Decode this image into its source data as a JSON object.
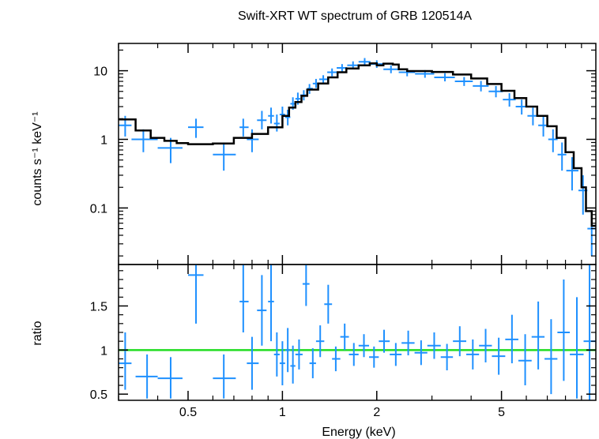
{
  "chart_data": [
    {
      "type": "scatter",
      "panel": "spectrum",
      "title": "Swift-XRT WT spectrum of GRB 120514A",
      "xlabel": "Energy (keV)",
      "ylabel": "counts s⁻¹ keV⁻¹",
      "xscale": "log",
      "yscale": "log",
      "xlim": [
        0.3,
        10
      ],
      "ylim": [
        0.015,
        25
      ],
      "yticks": [
        {
          "value": 0.1,
          "label": "0.1"
        },
        {
          "value": 1,
          "label": "1"
        },
        {
          "value": 10,
          "label": "10"
        }
      ],
      "colors": {
        "data": "#1e90ff",
        "model": "#000000"
      },
      "series": [
        {
          "name": "data",
          "points": [
            {
              "x": 0.315,
              "xlo": 0.3,
              "xhi": 0.33,
              "y": 1.6,
              "ylo": 1.1,
              "yhi": 2.2
            },
            {
              "x": 0.36,
              "xlo": 0.33,
              "xhi": 0.4,
              "y": 1.0,
              "ylo": 0.65,
              "yhi": 1.4
            },
            {
              "x": 0.44,
              "xlo": 0.4,
              "xhi": 0.48,
              "y": 0.75,
              "ylo": 0.45,
              "yhi": 1.05
            },
            {
              "x": 0.53,
              "xlo": 0.5,
              "xhi": 0.56,
              "y": 1.5,
              "ylo": 1.05,
              "yhi": 2.0
            },
            {
              "x": 0.65,
              "xlo": 0.6,
              "xhi": 0.71,
              "y": 0.6,
              "ylo": 0.35,
              "yhi": 0.9
            },
            {
              "x": 0.75,
              "xlo": 0.73,
              "xhi": 0.78,
              "y": 1.5,
              "ylo": 1.1,
              "yhi": 2.0
            },
            {
              "x": 0.8,
              "xlo": 0.77,
              "xhi": 0.84,
              "y": 1.0,
              "ylo": 0.65,
              "yhi": 1.4
            },
            {
              "x": 0.86,
              "xlo": 0.83,
              "xhi": 0.89,
              "y": 1.9,
              "ylo": 1.4,
              "yhi": 2.6
            },
            {
              "x": 0.92,
              "xlo": 0.9,
              "xhi": 0.94,
              "y": 2.2,
              "ylo": 1.7,
              "yhi": 2.9
            },
            {
              "x": 0.96,
              "xlo": 0.94,
              "xhi": 0.98,
              "y": 1.7,
              "ylo": 1.3,
              "yhi": 2.3
            },
            {
              "x": 1.0,
              "xlo": 0.98,
              "xhi": 1.02,
              "y": 2.3,
              "ylo": 1.8,
              "yhi": 3.0
            },
            {
              "x": 1.04,
              "xlo": 1.02,
              "xhi": 1.06,
              "y": 2.1,
              "ylo": 1.6,
              "yhi": 2.7
            },
            {
              "x": 1.08,
              "xlo": 1.06,
              "xhi": 1.1,
              "y": 3.3,
              "ylo": 2.7,
              "yhi": 4.1
            },
            {
              "x": 1.12,
              "xlo": 1.1,
              "xhi": 1.14,
              "y": 3.9,
              "ylo": 3.2,
              "yhi": 4.8
            },
            {
              "x": 1.17,
              "xlo": 1.14,
              "xhi": 1.2,
              "y": 4.4,
              "ylo": 3.7,
              "yhi": 5.2
            },
            {
              "x": 1.22,
              "xlo": 1.2,
              "xhi": 1.25,
              "y": 5.5,
              "ylo": 4.6,
              "yhi": 6.4
            },
            {
              "x": 1.28,
              "xlo": 1.25,
              "xhi": 1.31,
              "y": 6.5,
              "ylo": 5.6,
              "yhi": 7.6
            },
            {
              "x": 1.35,
              "xlo": 1.31,
              "xhi": 1.39,
              "y": 7.5,
              "ylo": 6.5,
              "yhi": 8.6
            },
            {
              "x": 1.44,
              "xlo": 1.39,
              "xhi": 1.49,
              "y": 9.5,
              "ylo": 8.3,
              "yhi": 10.8
            },
            {
              "x": 1.55,
              "xlo": 1.49,
              "xhi": 1.61,
              "y": 11.0,
              "ylo": 9.6,
              "yhi": 12.5
            },
            {
              "x": 1.68,
              "xlo": 1.61,
              "xhi": 1.75,
              "y": 12.0,
              "ylo": 10.5,
              "yhi": 13.7
            },
            {
              "x": 1.83,
              "xlo": 1.75,
              "xhi": 1.91,
              "y": 13.5,
              "ylo": 11.8,
              "yhi": 15.3
            },
            {
              "x": 2.0,
              "xlo": 1.91,
              "xhi": 2.1,
              "y": 12.5,
              "ylo": 11.0,
              "yhi": 14.2
            },
            {
              "x": 2.22,
              "xlo": 2.1,
              "xhi": 2.35,
              "y": 10.5,
              "ylo": 9.2,
              "yhi": 12.0
            },
            {
              "x": 2.5,
              "xlo": 2.35,
              "xhi": 2.65,
              "y": 9.5,
              "ylo": 8.3,
              "yhi": 10.8
            },
            {
              "x": 2.85,
              "xlo": 2.65,
              "xhi": 3.05,
              "y": 9.0,
              "ylo": 7.9,
              "yhi": 10.2
            },
            {
              "x": 3.3,
              "xlo": 3.05,
              "xhi": 3.55,
              "y": 8.0,
              "ylo": 7.0,
              "yhi": 9.2
            },
            {
              "x": 3.8,
              "xlo": 3.55,
              "xhi": 4.05,
              "y": 7.0,
              "ylo": 6.0,
              "yhi": 8.1
            },
            {
              "x": 4.3,
              "xlo": 4.05,
              "xhi": 4.55,
              "y": 6.0,
              "ylo": 5.0,
              "yhi": 7.1
            },
            {
              "x": 4.8,
              "xlo": 4.55,
              "xhi": 5.05,
              "y": 5.0,
              "ylo": 4.1,
              "yhi": 6.0
            },
            {
              "x": 5.3,
              "xlo": 5.05,
              "xhi": 5.55,
              "y": 3.8,
              "ylo": 3.0,
              "yhi": 4.7
            },
            {
              "x": 5.8,
              "xlo": 5.55,
              "xhi": 6.05,
              "y": 3.0,
              "ylo": 2.3,
              "yhi": 3.8
            },
            {
              "x": 6.3,
              "xlo": 6.05,
              "xhi": 6.55,
              "y": 2.2,
              "ylo": 1.6,
              "yhi": 2.9
            },
            {
              "x": 6.8,
              "xlo": 6.55,
              "xhi": 7.05,
              "y": 1.6,
              "ylo": 1.1,
              "yhi": 2.2
            },
            {
              "x": 7.3,
              "xlo": 7.05,
              "xhi": 7.55,
              "y": 1.0,
              "ylo": 0.65,
              "yhi": 1.4
            },
            {
              "x": 7.8,
              "xlo": 7.55,
              "xhi": 8.05,
              "y": 0.6,
              "ylo": 0.35,
              "yhi": 0.9
            },
            {
              "x": 8.4,
              "xlo": 8.05,
              "xhi": 8.8,
              "y": 0.35,
              "ylo": 0.18,
              "yhi": 0.55
            },
            {
              "x": 9.1,
              "xlo": 8.8,
              "xhi": 9.4,
              "y": 0.18,
              "ylo": 0.08,
              "yhi": 0.3
            },
            {
              "x": 9.7,
              "xlo": 9.4,
              "xhi": 10.0,
              "y": 0.05,
              "ylo": 0.02,
              "yhi": 0.09
            }
          ]
        },
        {
          "name": "model",
          "step": [
            {
              "x": 0.3,
              "y": 1.95
            },
            {
              "x": 0.34,
              "y": 1.35
            },
            {
              "x": 0.38,
              "y": 1.05
            },
            {
              "x": 0.42,
              "y": 0.95
            },
            {
              "x": 0.46,
              "y": 0.88
            },
            {
              "x": 0.5,
              "y": 0.85
            },
            {
              "x": 0.6,
              "y": 0.87
            },
            {
              "x": 0.7,
              "y": 1.05
            },
            {
              "x": 0.8,
              "y": 1.2
            },
            {
              "x": 0.9,
              "y": 1.5
            },
            {
              "x": 1.0,
              "y": 2.2
            },
            {
              "x": 1.05,
              "y": 2.9
            },
            {
              "x": 1.1,
              "y": 3.5
            },
            {
              "x": 1.15,
              "y": 4.3
            },
            {
              "x": 1.2,
              "y": 5.3
            },
            {
              "x": 1.3,
              "y": 6.5
            },
            {
              "x": 1.4,
              "y": 8.0
            },
            {
              "x": 1.5,
              "y": 9.5
            },
            {
              "x": 1.6,
              "y": 10.8
            },
            {
              "x": 1.75,
              "y": 12.0
            },
            {
              "x": 1.9,
              "y": 12.8
            },
            {
              "x": 2.0,
              "y": 12.0
            },
            {
              "x": 2.1,
              "y": 12.7
            },
            {
              "x": 2.25,
              "y": 12.3
            },
            {
              "x": 2.35,
              "y": 10.5
            },
            {
              "x": 2.5,
              "y": 9.9
            },
            {
              "x": 3.0,
              "y": 9.6
            },
            {
              "x": 3.5,
              "y": 8.8
            },
            {
              "x": 4.0,
              "y": 7.7
            },
            {
              "x": 4.5,
              "y": 6.4
            },
            {
              "x": 5.0,
              "y": 5.1
            },
            {
              "x": 5.5,
              "y": 4.0
            },
            {
              "x": 6.0,
              "y": 3.0
            },
            {
              "x": 6.5,
              "y": 2.2
            },
            {
              "x": 7.0,
              "y": 1.55
            },
            {
              "x": 7.5,
              "y": 1.05
            },
            {
              "x": 8.0,
              "y": 0.65
            },
            {
              "x": 8.5,
              "y": 0.38
            },
            {
              "x": 9.0,
              "y": 0.2
            },
            {
              "x": 9.3,
              "y": 0.09
            },
            {
              "x": 9.7,
              "y": 0.055
            },
            {
              "x": 10.0,
              "y": 0.055
            }
          ]
        }
      ]
    },
    {
      "type": "scatter",
      "panel": "ratio",
      "xlabel": "Energy (keV)",
      "ylabel": "ratio",
      "xscale": "log",
      "xlim": [
        0.3,
        10
      ],
      "ylim": [
        0.43,
        1.97
      ],
      "xticks": [
        {
          "value": 0.5,
          "label": "0.5"
        },
        {
          "value": 1,
          "label": "1"
        },
        {
          "value": 2,
          "label": "2"
        },
        {
          "value": 5,
          "label": "5"
        }
      ],
      "yticks": [
        {
          "value": 0.5,
          "label": "0.5"
        },
        {
          "value": 1,
          "label": "1"
        },
        {
          "value": 1.5,
          "label": "1.5"
        }
      ],
      "reference_line": 1.0,
      "colors": {
        "data": "#1e90ff",
        "reference": "#22dd22"
      },
      "series": [
        {
          "name": "ratio",
          "points": [
            {
              "x": 0.315,
              "xlo": 0.3,
              "xhi": 0.33,
              "y": 0.85,
              "ylo": 0.55,
              "yhi": 1.2
            },
            {
              "x": 0.37,
              "xlo": 0.34,
              "xhi": 0.4,
              "y": 0.7,
              "ylo": 0.45,
              "yhi": 0.95
            },
            {
              "x": 0.44,
              "xlo": 0.4,
              "xhi": 0.48,
              "y": 0.68,
              "ylo": 0.45,
              "yhi": 0.92
            },
            {
              "x": 0.53,
              "xlo": 0.5,
              "xhi": 0.56,
              "y": 1.85,
              "ylo": 1.3,
              "yhi": 1.97
            },
            {
              "x": 0.65,
              "xlo": 0.6,
              "xhi": 0.71,
              "y": 0.68,
              "ylo": 0.45,
              "yhi": 0.95
            },
            {
              "x": 0.75,
              "xlo": 0.73,
              "xhi": 0.78,
              "y": 1.55,
              "ylo": 1.2,
              "yhi": 1.97
            },
            {
              "x": 0.8,
              "xlo": 0.77,
              "xhi": 0.84,
              "y": 0.85,
              "ylo": 0.55,
              "yhi": 1.15
            },
            {
              "x": 0.86,
              "xlo": 0.83,
              "xhi": 0.89,
              "y": 1.45,
              "ylo": 1.05,
              "yhi": 1.85
            },
            {
              "x": 0.92,
              "xlo": 0.9,
              "xhi": 0.94,
              "y": 1.55,
              "ylo": 1.1,
              "yhi": 1.97
            },
            {
              "x": 0.96,
              "xlo": 0.94,
              "xhi": 0.98,
              "y": 0.95,
              "ylo": 0.7,
              "yhi": 1.2
            },
            {
              "x": 1.0,
              "xlo": 0.98,
              "xhi": 1.02,
              "y": 0.85,
              "ylo": 0.6,
              "yhi": 1.1
            },
            {
              "x": 1.04,
              "xlo": 1.02,
              "xhi": 1.06,
              "y": 1.0,
              "ylo": 0.75,
              "yhi": 1.25
            },
            {
              "x": 1.08,
              "xlo": 1.06,
              "xhi": 1.1,
              "y": 0.82,
              "ylo": 0.62,
              "yhi": 1.05
            },
            {
              "x": 1.13,
              "xlo": 1.1,
              "xhi": 1.16,
              "y": 0.95,
              "ylo": 0.78,
              "yhi": 1.12
            },
            {
              "x": 1.19,
              "xlo": 1.16,
              "xhi": 1.22,
              "y": 1.75,
              "ylo": 1.5,
              "yhi": 1.97
            },
            {
              "x": 1.25,
              "xlo": 1.22,
              "xhi": 1.28,
              "y": 0.85,
              "ylo": 0.68,
              "yhi": 1.02
            },
            {
              "x": 1.32,
              "xlo": 1.28,
              "xhi": 1.36,
              "y": 1.1,
              "ylo": 0.92,
              "yhi": 1.28
            },
            {
              "x": 1.4,
              "xlo": 1.36,
              "xhi": 1.44,
              "y": 1.52,
              "ylo": 1.3,
              "yhi": 1.74
            },
            {
              "x": 1.48,
              "xlo": 1.44,
              "xhi": 1.53,
              "y": 0.9,
              "ylo": 0.76,
              "yhi": 1.04
            },
            {
              "x": 1.58,
              "xlo": 1.53,
              "xhi": 1.63,
              "y": 1.15,
              "ylo": 1.0,
              "yhi": 1.3
            },
            {
              "x": 1.69,
              "xlo": 1.63,
              "xhi": 1.75,
              "y": 0.95,
              "ylo": 0.82,
              "yhi": 1.08
            },
            {
              "x": 1.82,
              "xlo": 1.75,
              "xhi": 1.89,
              "y": 1.05,
              "ylo": 0.92,
              "yhi": 1.18
            },
            {
              "x": 1.96,
              "xlo": 1.89,
              "xhi": 2.03,
              "y": 0.92,
              "ylo": 0.8,
              "yhi": 1.04
            },
            {
              "x": 2.11,
              "xlo": 2.03,
              "xhi": 2.2,
              "y": 1.1,
              "ylo": 0.97,
              "yhi": 1.23
            },
            {
              "x": 2.3,
              "xlo": 2.2,
              "xhi": 2.4,
              "y": 0.95,
              "ylo": 0.82,
              "yhi": 1.08
            },
            {
              "x": 2.52,
              "xlo": 2.4,
              "xhi": 2.64,
              "y": 1.08,
              "ylo": 0.94,
              "yhi": 1.22
            },
            {
              "x": 2.77,
              "xlo": 2.64,
              "xhi": 2.9,
              "y": 0.97,
              "ylo": 0.83,
              "yhi": 1.11
            },
            {
              "x": 3.05,
              "xlo": 2.9,
              "xhi": 3.2,
              "y": 1.05,
              "ylo": 0.9,
              "yhi": 1.2
            },
            {
              "x": 3.35,
              "xlo": 3.2,
              "xhi": 3.5,
              "y": 0.92,
              "ylo": 0.77,
              "yhi": 1.07
            },
            {
              "x": 3.68,
              "xlo": 3.5,
              "xhi": 3.86,
              "y": 1.1,
              "ylo": 0.93,
              "yhi": 1.27
            },
            {
              "x": 4.05,
              "xlo": 3.86,
              "xhi": 4.24,
              "y": 0.95,
              "ylo": 0.78,
              "yhi": 1.12
            },
            {
              "x": 4.45,
              "xlo": 4.24,
              "xhi": 4.66,
              "y": 1.05,
              "ylo": 0.86,
              "yhi": 1.24
            },
            {
              "x": 4.9,
              "xlo": 4.66,
              "xhi": 5.14,
              "y": 0.93,
              "ylo": 0.72,
              "yhi": 1.14
            },
            {
              "x": 5.4,
              "xlo": 5.14,
              "xhi": 5.66,
              "y": 1.12,
              "ylo": 0.85,
              "yhi": 1.4
            },
            {
              "x": 5.95,
              "xlo": 5.66,
              "xhi": 6.24,
              "y": 0.88,
              "ylo": 0.6,
              "yhi": 1.18
            },
            {
              "x": 6.55,
              "xlo": 6.24,
              "xhi": 6.86,
              "y": 1.15,
              "ylo": 0.78,
              "yhi": 1.55
            },
            {
              "x": 7.2,
              "xlo": 6.86,
              "xhi": 7.54,
              "y": 0.9,
              "ylo": 0.5,
              "yhi": 1.35
            },
            {
              "x": 7.9,
              "xlo": 7.54,
              "xhi": 8.26,
              "y": 1.2,
              "ylo": 0.65,
              "yhi": 1.8
            },
            {
              "x": 8.7,
              "xlo": 8.26,
              "xhi": 9.14,
              "y": 0.95,
              "ylo": 0.45,
              "yhi": 1.6
            },
            {
              "x": 9.55,
              "xlo": 9.14,
              "xhi": 9.96,
              "y": 1.1,
              "ylo": 0.43,
              "yhi": 1.97
            }
          ]
        }
      ]
    }
  ]
}
